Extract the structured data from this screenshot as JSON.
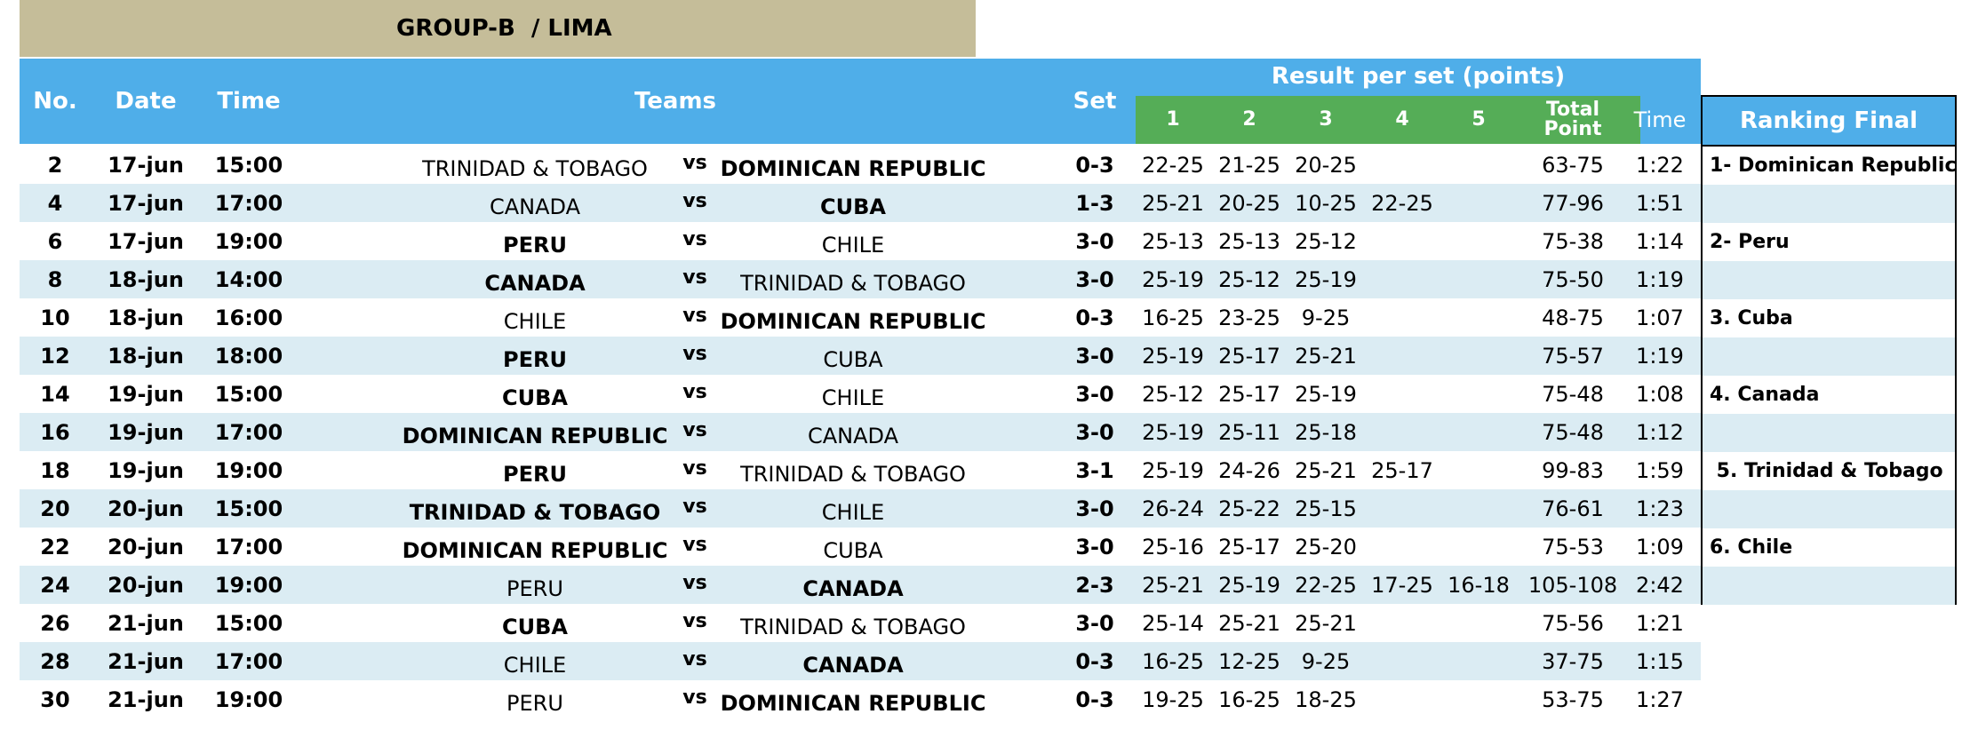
{
  "group_title": "GROUP-B  / LIMA",
  "headers": {
    "no": "No.",
    "date": "Date",
    "time": "Time",
    "teams": "Teams",
    "set": "Set",
    "result_per_set": "Result per set (points)",
    "set_numbers": [
      "1",
      "2",
      "3",
      "4",
      "5"
    ],
    "total_point": "Total Point",
    "duration": "Time"
  },
  "vs_label": "vs",
  "matches": [
    {
      "no": "2",
      "date": "17-jun",
      "time": "15:00",
      "home": "TRINIDAD & TOBAGO",
      "away": "DOMINICAN REPUBLIC",
      "winner": "away",
      "set": "0-3",
      "sets": [
        "22-25",
        "21-25",
        "20-25",
        "",
        ""
      ],
      "total": "63-75",
      "duration": "1:22"
    },
    {
      "no": "4",
      "date": "17-jun",
      "time": "17:00",
      "home": "CANADA",
      "away": "CUBA",
      "winner": "away",
      "set": "1-3",
      "sets": [
        "25-21",
        "20-25",
        "10-25",
        "22-25",
        ""
      ],
      "total": "77-96",
      "duration": "1:51"
    },
    {
      "no": "6",
      "date": "17-jun",
      "time": "19:00",
      "home": "PERU",
      "away": "CHILE",
      "winner": "home",
      "set": "3-0",
      "sets": [
        "25-13",
        "25-13",
        "25-12",
        "",
        ""
      ],
      "total": "75-38",
      "duration": "1:14"
    },
    {
      "no": "8",
      "date": "18-jun",
      "time": "14:00",
      "home": "CANADA",
      "away": "TRINIDAD & TOBAGO",
      "winner": "home",
      "set": "3-0",
      "sets": [
        "25-19",
        "25-12",
        "25-19",
        "",
        ""
      ],
      "total": "75-50",
      "duration": "1:19"
    },
    {
      "no": "10",
      "date": "18-jun",
      "time": "16:00",
      "home": "CHILE",
      "away": "DOMINICAN REPUBLIC",
      "winner": "away",
      "set": "0-3",
      "sets": [
        "16-25",
        "23-25",
        "9-25",
        "",
        ""
      ],
      "total": "48-75",
      "duration": "1:07"
    },
    {
      "no": "12",
      "date": "18-jun",
      "time": "18:00",
      "home": "PERU",
      "away": "CUBA",
      "winner": "home",
      "set": "3-0",
      "sets": [
        "25-19",
        "25-17",
        "25-21",
        "",
        ""
      ],
      "total": "75-57",
      "duration": "1:19"
    },
    {
      "no": "14",
      "date": "19-jun",
      "time": "15:00",
      "home": "CUBA",
      "away": "CHILE",
      "winner": "home",
      "set": "3-0",
      "sets": [
        "25-12",
        "25-17",
        "25-19",
        "",
        ""
      ],
      "total": "75-48",
      "duration": "1:08"
    },
    {
      "no": "16",
      "date": "19-jun",
      "time": "17:00",
      "home": "DOMINICAN REPUBLIC",
      "away": "CANADA",
      "winner": "home",
      "set": "3-0",
      "sets": [
        "25-19",
        "25-11",
        "25-18",
        "",
        ""
      ],
      "total": "75-48",
      "duration": "1:12"
    },
    {
      "no": "18",
      "date": "19-jun",
      "time": "19:00",
      "home": "PERU",
      "away": "TRINIDAD & TOBAGO",
      "winner": "home",
      "set": "3-1",
      "sets": [
        "25-19",
        "24-26",
        "25-21",
        "25-17",
        ""
      ],
      "total": "99-83",
      "duration": "1:59"
    },
    {
      "no": "20",
      "date": "20-jun",
      "time": "15:00",
      "home": "TRINIDAD & TOBAGO",
      "away": "CHILE",
      "winner": "home",
      "set": "3-0",
      "sets": [
        "26-24",
        "25-22",
        "25-15",
        "",
        ""
      ],
      "total": "76-61",
      "duration": "1:23"
    },
    {
      "no": "22",
      "date": "20-jun",
      "time": "17:00",
      "home": "DOMINICAN REPUBLIC",
      "away": "CUBA",
      "winner": "home",
      "set": "3-0",
      "sets": [
        "25-16",
        "25-17",
        "25-20",
        "",
        ""
      ],
      "total": "75-53",
      "duration": "1:09"
    },
    {
      "no": "24",
      "date": "20-jun",
      "time": "19:00",
      "home": "PERU",
      "away": "CANADA",
      "winner": "away",
      "set": "2-3",
      "sets": [
        "25-21",
        "25-19",
        "22-25",
        "17-25",
        "16-18"
      ],
      "total": "105-108",
      "duration": "2:42"
    },
    {
      "no": "26",
      "date": "21-jun",
      "time": "15:00",
      "home": "CUBA",
      "away": "TRINIDAD & TOBAGO",
      "winner": "home",
      "set": "3-0",
      "sets": [
        "25-14",
        "25-21",
        "25-21",
        "",
        ""
      ],
      "total": "75-56",
      "duration": "1:21"
    },
    {
      "no": "28",
      "date": "21-jun",
      "time": "17:00",
      "home": "CHILE",
      "away": "CANADA",
      "winner": "away",
      "set": "0-3",
      "sets": [
        "16-25",
        "12-25",
        "9-25",
        "",
        ""
      ],
      "total": "37-75",
      "duration": "1:15"
    },
    {
      "no": "30",
      "date": "21-jun",
      "time": "19:00",
      "home": "PERU",
      "away": "DOMINICAN REPUBLIC",
      "winner": "away",
      "set": "0-3",
      "sets": [
        "19-25",
        "16-25",
        "18-25",
        "",
        ""
      ],
      "total": "53-75",
      "duration": "1:27"
    }
  ],
  "ranking": {
    "title": "Ranking Final",
    "rows": [
      "1- Dominican Republic",
      "",
      "2- Peru",
      "",
      "3. Cuba",
      "",
      "4. Canada",
      "",
      " 5. Trinidad & Tobago",
      "",
      "6. Chile",
      ""
    ]
  },
  "colors": {
    "header_blue": "#4faee9",
    "set_green": "#55ad57",
    "title_tan": "#c5bd99",
    "row_alt": "#dbecf3"
  }
}
